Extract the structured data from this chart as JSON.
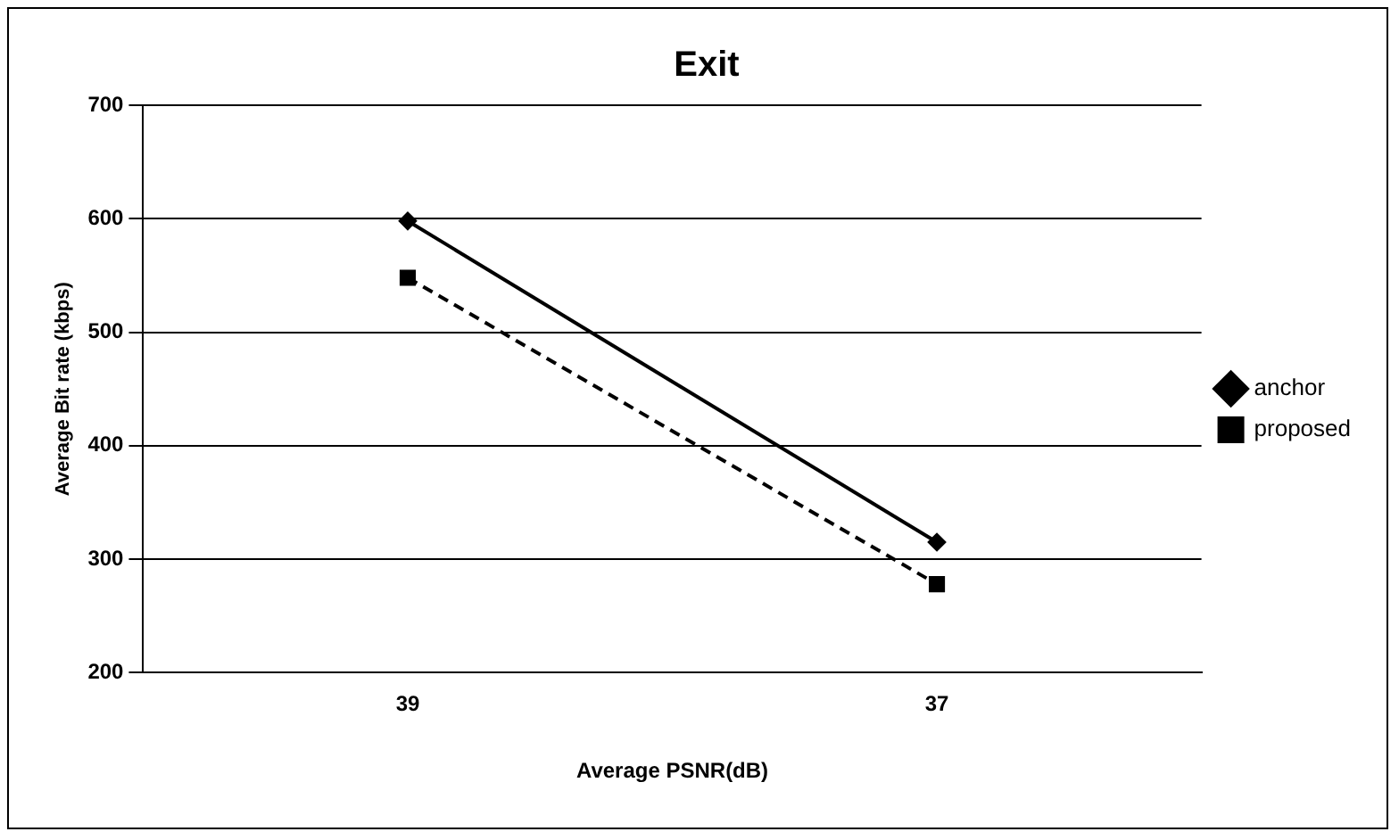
{
  "chart_data": {
    "type": "line",
    "title": "Exit",
    "xlabel": "Average PSNR(dB)",
    "ylabel": "Average Bit rate (kbps)",
    "categories": [
      "39",
      "37"
    ],
    "series": [
      {
        "name": "anchor",
        "color": "#000000",
        "values": [
          598,
          315
        ],
        "marker": "diamond",
        "line_style": "solid"
      },
      {
        "name": "proposed",
        "color": "#000000",
        "values": [
          548,
          278
        ],
        "marker": "square",
        "line_style": "dashed"
      }
    ],
    "ylim": [
      200,
      700
    ],
    "yticks": [
      200,
      300,
      400,
      500,
      600,
      700
    ],
    "grid": "y",
    "legend": "right"
  }
}
